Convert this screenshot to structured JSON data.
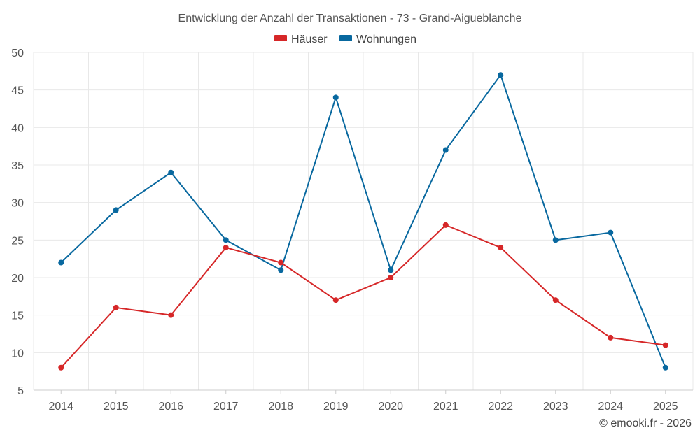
{
  "chart_data": {
    "type": "line",
    "title": "Entwicklung der Anzahl der Transaktionen - 73 - Grand-Aigueblanche",
    "xlabel": "",
    "ylabel": "",
    "categories": [
      "2014",
      "2015",
      "2016",
      "2017",
      "2018",
      "2019",
      "2020",
      "2021",
      "2022",
      "2023",
      "2024",
      "2025"
    ],
    "ylim": [
      5,
      50
    ],
    "yticks": [
      5,
      10,
      15,
      20,
      25,
      30,
      35,
      40,
      45,
      50
    ],
    "grid": true,
    "legend_position": "top-center",
    "series": [
      {
        "name": "Häuser",
        "color": "#d62728",
        "values": [
          8,
          16,
          15,
          24,
          22,
          17,
          20,
          27,
          24,
          17,
          12,
          11
        ]
      },
      {
        "name": "Wohnungen",
        "color": "#08689f",
        "values": [
          22,
          29,
          34,
          25,
          21,
          44,
          21,
          37,
          47,
          25,
          26,
          8
        ]
      }
    ]
  },
  "credit": "© emooki.fr - 2026"
}
